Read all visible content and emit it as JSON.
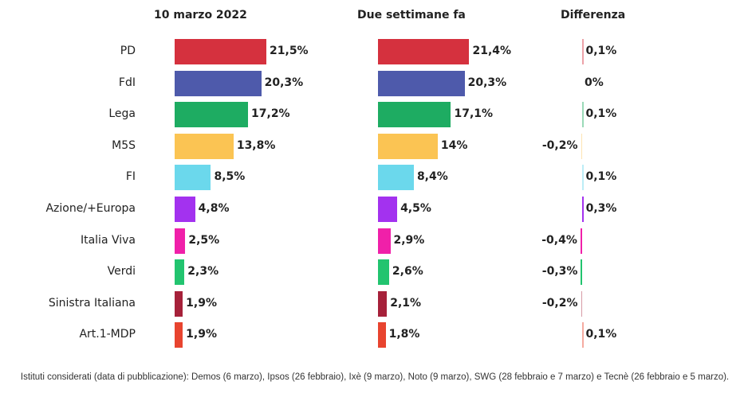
{
  "chart_data": {
    "type": "bar",
    "orientation": "horizontal",
    "categories": [
      "PD",
      "FdI",
      "Lega",
      "M5S",
      "FI",
      "Azione/+Europa",
      "Italia Viva",
      "Verdi",
      "Sinistra Italiana",
      "Art.1-MDP"
    ],
    "colors": [
      "#d5313e",
      "#4e5aab",
      "#1eac62",
      "#fbc453",
      "#6bd8ec",
      "#a332ef",
      "#f020a9",
      "#22c46f",
      "#a6213a",
      "#e8442f"
    ],
    "series": [
      {
        "name": "10 marzo 2022",
        "values": [
          21.5,
          20.3,
          17.2,
          13.8,
          8.5,
          4.8,
          2.5,
          2.3,
          1.9,
          1.9
        ],
        "labels": [
          "21,5%",
          "20,3%",
          "17,2%",
          "13,8%",
          "8,5%",
          "4,8%",
          "2,5%",
          "2,3%",
          "1,9%",
          "1,9%"
        ]
      },
      {
        "name": "Due settimane fa",
        "values": [
          21.4,
          20.3,
          17.1,
          14,
          8.4,
          4.5,
          2.9,
          2.6,
          2.1,
          1.8
        ],
        "labels": [
          "21,4%",
          "20,3%",
          "17,1%",
          "14%",
          "8,4%",
          "4,5%",
          "2,9%",
          "2,6%",
          "2,1%",
          "1,8%"
        ]
      },
      {
        "name": "Differenza",
        "values": [
          0.1,
          0,
          0.1,
          -0.2,
          0.1,
          0.3,
          -0.4,
          -0.3,
          -0.2,
          0.1
        ],
        "labels": [
          "0,1%",
          "0%",
          "0,1%",
          "-0,2%",
          "0,1%",
          "0,3%",
          "-0,4%",
          "-0,3%",
          "-0,2%",
          "0,1%"
        ]
      }
    ],
    "grid": false,
    "legend": "none"
  },
  "note": "Istituti considerati (data di pubblicazione): Demos (6 marzo), Ipsos (26 febbraio), Ixè (9 marzo), Noto (9 marzo), SWG (28 febbraio e 7 marzo) e Tecnè (26 febbraio e 5 marzo)."
}
